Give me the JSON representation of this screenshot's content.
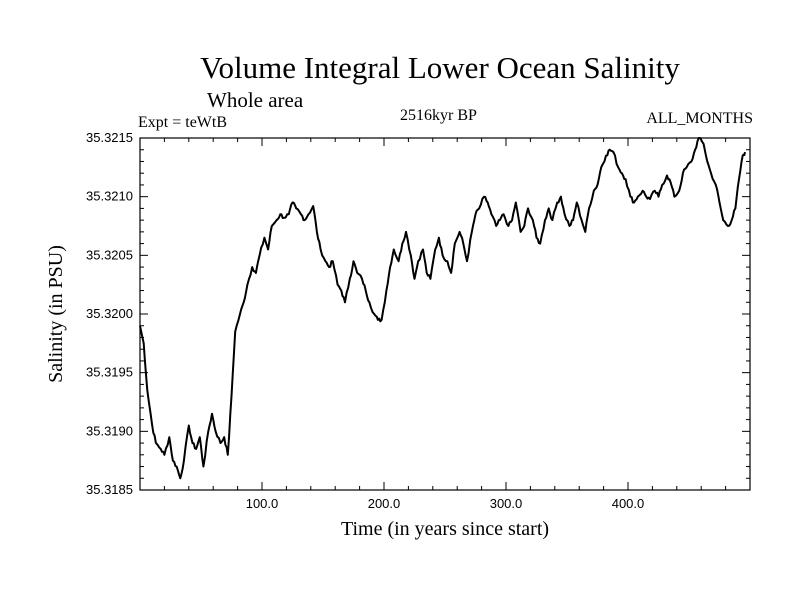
{
  "chart_data": {
    "type": "line",
    "title": "Volume Integral Lower Ocean Salinity",
    "subtitle": "Whole area",
    "experiment": "Expt = teWtB",
    "period": "2516kyr BP",
    "months": "ALL_MONTHS",
    "xlabel": "Time (in years since start)",
    "ylabel": "Salinity (in PSU)",
    "xlim": [
      0,
      500
    ],
    "ylim": [
      35.3185,
      35.3215
    ],
    "x_ticks": [
      100,
      200,
      300,
      400
    ],
    "x_tick_labels": [
      "100.0",
      "200.0",
      "300.0",
      "400.0"
    ],
    "y_ticks": [
      35.3185,
      35.319,
      35.3195,
      35.32,
      35.3205,
      35.321,
      35.3215
    ],
    "y_tick_labels": [
      "35.3185",
      "35.3190",
      "35.3195",
      "35.3200",
      "35.3205",
      "35.3210",
      "35.3215"
    ],
    "series": [
      {
        "name": "Salinity",
        "x": [
          0,
          3,
          6,
          10,
          13,
          17,
          20,
          24,
          27,
          30,
          33,
          36,
          40,
          43,
          46,
          49,
          52,
          56,
          59,
          62,
          66,
          69,
          72,
          75,
          78,
          82,
          85,
          88,
          92,
          95,
          98,
          102,
          105,
          108,
          112,
          115,
          118,
          122,
          125,
          128,
          132,
          135,
          138,
          142,
          145,
          148,
          152,
          155,
          158,
          162,
          165,
          168,
          172,
          175,
          178,
          182,
          185,
          188,
          192,
          195,
          198,
          202,
          205,
          208,
          212,
          215,
          218,
          222,
          225,
          228,
          232,
          235,
          238,
          242,
          245,
          248,
          252,
          255,
          258,
          262,
          265,
          268,
          272,
          275,
          278,
          282,
          285,
          288,
          292,
          295,
          298,
          302,
          305,
          308,
          312,
          315,
          318,
          322,
          325,
          328,
          332,
          335,
          338,
          342,
          345,
          348,
          352,
          355,
          358,
          362,
          365,
          368,
          372,
          375,
          378,
          382,
          385,
          388,
          392,
          395,
          398,
          402,
          405,
          408,
          412,
          415,
          418,
          422,
          425,
          428,
          432,
          435,
          438,
          442,
          445,
          448,
          452,
          455,
          458,
          462,
          465,
          468,
          472,
          475,
          478,
          482,
          485,
          488,
          491,
          494,
          496
        ],
        "values": [
          35.3199,
          35.31975,
          35.31935,
          35.31905,
          35.3189,
          35.31885,
          35.3188,
          35.31895,
          35.31875,
          35.3187,
          35.3186,
          35.31875,
          35.31905,
          35.3189,
          35.31885,
          35.31895,
          35.3187,
          35.319,
          35.31915,
          35.319,
          35.3189,
          35.31895,
          35.3188,
          35.3193,
          35.31985,
          35.32,
          35.3201,
          35.32025,
          35.3204,
          35.32035,
          35.3205,
          35.32065,
          35.32055,
          35.32075,
          35.3208,
          35.32085,
          35.32082,
          35.32085,
          35.32095,
          35.3209,
          35.32085,
          35.3208,
          35.32085,
          35.32092,
          35.3207,
          35.32055,
          35.32045,
          35.3204,
          35.32045,
          35.32025,
          35.3202,
          35.3201,
          35.3203,
          35.32045,
          35.32035,
          35.3203,
          35.3202,
          35.3201,
          35.32,
          35.31995,
          35.31995,
          35.3202,
          35.3204,
          35.32055,
          35.32045,
          35.3206,
          35.3207,
          35.3205,
          35.3203,
          35.32045,
          35.32055,
          35.32035,
          35.3203,
          35.32055,
          35.32065,
          35.3205,
          35.32045,
          35.32035,
          35.3206,
          35.3207,
          35.3206,
          35.32045,
          35.3207,
          35.32085,
          35.3209,
          35.321,
          35.32095,
          35.32085,
          35.32075,
          35.3208,
          35.32085,
          35.32075,
          35.3208,
          35.32095,
          35.3207,
          35.32075,
          35.3209,
          35.3208,
          35.32065,
          35.3206,
          35.3208,
          35.3209,
          35.3208,
          35.32095,
          35.321,
          35.32085,
          35.32075,
          35.3208,
          35.32095,
          35.3208,
          35.3207,
          35.3209,
          35.32105,
          35.3211,
          35.32125,
          35.32135,
          35.3214,
          35.32138,
          35.32125,
          35.3212,
          35.32115,
          35.321,
          35.32095,
          35.321,
          35.32105,
          35.321,
          35.32098,
          35.32105,
          35.321,
          35.3211,
          35.32118,
          35.32112,
          35.321,
          35.32105,
          35.3212,
          35.32125,
          35.3213,
          35.3214,
          35.3215,
          35.32145,
          35.3213,
          35.3212,
          35.3211,
          35.32095,
          35.3208,
          35.32075,
          35.3208,
          35.3209,
          35.32115,
          35.32135,
          35.32138
        ]
      }
    ]
  }
}
